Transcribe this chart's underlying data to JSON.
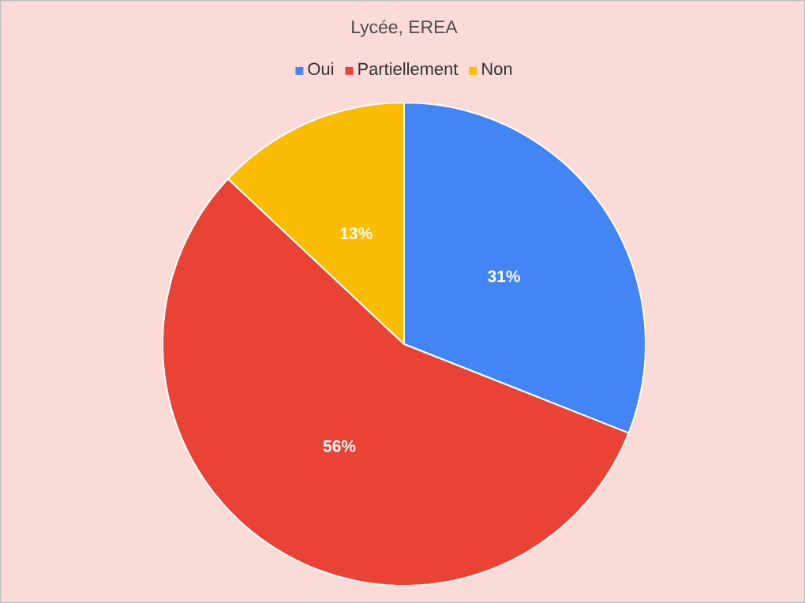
{
  "chart_data": {
    "type": "pie",
    "title": "Lycée, EREA",
    "categories": [
      "Oui",
      "Partiellement",
      "Non"
    ],
    "values": [
      31,
      56,
      13
    ],
    "colors": [
      "#4285f4",
      "#ea4335",
      "#fbbc04"
    ],
    "value_labels": [
      "31%",
      "56%",
      "13%"
    ],
    "legend": "top"
  }
}
